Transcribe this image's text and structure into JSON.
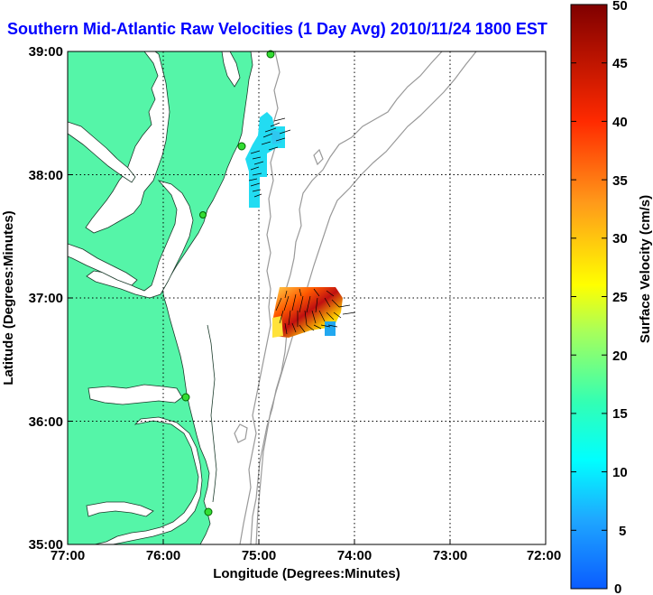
{
  "title": "Southern Mid-Atlantic Raw Velocities (1 Day Avg) 2010/11/24 1800 EST",
  "map": {
    "xlabel": "Longitude (Degrees:Minutes)",
    "ylabel": "Latitude (Degrees:Minutes)",
    "x_ticks": [
      "77:00",
      "76:00",
      "75:00",
      "74:00",
      "73:00",
      "72:00"
    ],
    "y_ticks": [
      "39:00",
      "38:00",
      "37:00",
      "36:00",
      "35:00"
    ],
    "land_color": "#55f5a8",
    "bathymetry_color": "#999999",
    "station_color": "#33dd33"
  },
  "colorbar": {
    "label": "Surface Velocity (cm/s)",
    "ticks": [
      "50",
      "45",
      "40",
      "35",
      "30",
      "25",
      "20",
      "15",
      "10",
      "5",
      "0"
    ],
    "min": 0,
    "max": 50
  }
}
